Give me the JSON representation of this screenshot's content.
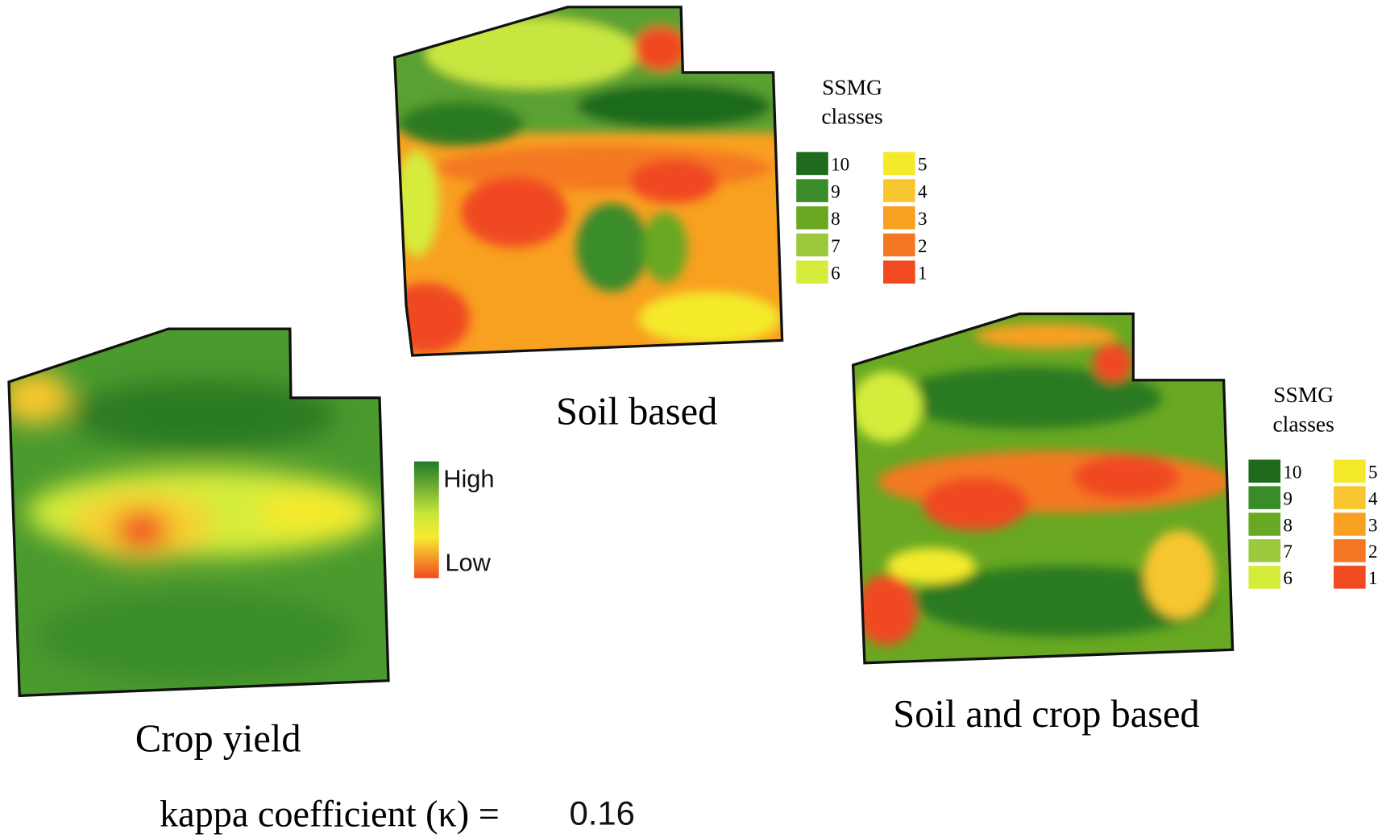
{
  "maps": [
    {
      "caption": "Soil based"
    },
    {
      "caption": "Crop yield"
    },
    {
      "caption": "Soil and crop based"
    }
  ],
  "legends": [
    {
      "title": [
        "SSMG",
        "classes"
      ],
      "classes": [
        {
          "label": 10,
          "color": "#1e6b1e"
        },
        {
          "label": 9,
          "color": "#3a8c2a"
        },
        {
          "label": 8,
          "color": "#68a822"
        },
        {
          "label": 7,
          "color": "#9cc83c"
        },
        {
          "label": 6,
          "color": "#d6ec3a"
        },
        {
          "label": 5,
          "color": "#f4ea2a"
        },
        {
          "label": 4,
          "color": "#f8c62e"
        },
        {
          "label": 3,
          "color": "#f8a020"
        },
        {
          "label": 2,
          "color": "#f47824"
        },
        {
          "label": 1,
          "color": "#f04a20"
        }
      ]
    },
    {
      "title": [
        "SSMG",
        "classes"
      ],
      "classes": [
        {
          "label": 10,
          "color": "#1e6b1e"
        },
        {
          "label": 9,
          "color": "#3a8c2a"
        },
        {
          "label": 8,
          "color": "#68a822"
        },
        {
          "label": 7,
          "color": "#9cc83c"
        },
        {
          "label": 6,
          "color": "#d6ec3a"
        },
        {
          "label": 5,
          "color": "#f4ea2a"
        },
        {
          "label": 4,
          "color": "#f8c62e"
        },
        {
          "label": 3,
          "color": "#f8a020"
        },
        {
          "label": 2,
          "color": "#f47824"
        },
        {
          "label": 1,
          "color": "#f04a20"
        }
      ]
    }
  ],
  "yield_legend": {
    "high": "High",
    "low": "Low"
  },
  "kappa": {
    "label": "kappa coefficient (κ) =",
    "value": 0.16
  }
}
